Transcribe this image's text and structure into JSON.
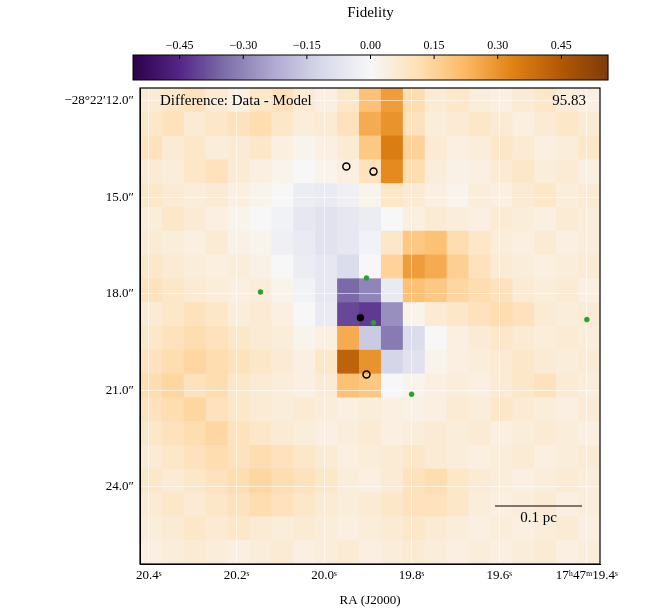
{
  "chart_data": {
    "type": "heatmap",
    "title": "Difference: Data - Model",
    "annotation": "95.83",
    "x_label": "RA (J2000)",
    "scale_bar": "0.1 pc",
    "grid": true,
    "xlim": [
      20.42,
      19.37
    ],
    "xticks": [
      {
        "value": 20.4,
        "label": "20.4ˢ"
      },
      {
        "value": 20.2,
        "label": "20.2ˢ"
      },
      {
        "value": 20.0,
        "label": "20.0ˢ"
      },
      {
        "value": 19.8,
        "label": "19.8ˢ"
      },
      {
        "value": 19.6,
        "label": "19.6ˢ"
      },
      {
        "value": 19.4,
        "label": "17ʰ47ᵐ19.4ˢ"
      }
    ],
    "ylim": [
      26.4,
      11.6
    ],
    "yticks": [
      {
        "value": 12,
        "label": "−28°22′12.0″"
      },
      {
        "value": 15,
        "label": "15.0″"
      },
      {
        "value": 18,
        "label": "18.0″"
      },
      {
        "value": 21,
        "label": "21.0″"
      },
      {
        "value": 24,
        "label": "24.0″"
      }
    ],
    "colorbar": {
      "title": "Fidelity",
      "range": [
        -0.56,
        0.56
      ],
      "ticks": [
        {
          "value": -0.45,
          "label": "−0.45"
        },
        {
          "value": -0.3,
          "label": "−0.30"
        },
        {
          "value": -0.15,
          "label": "−0.15"
        },
        {
          "value": 0,
          "label": "0.00"
        },
        {
          "value": 0.15,
          "label": "0.15"
        },
        {
          "value": 0.3,
          "label": "0.30"
        },
        {
          "value": 0.45,
          "label": "0.45"
        }
      ]
    },
    "heatmap": {
      "x": [
        20.395,
        20.345,
        20.295,
        20.245,
        20.195,
        20.145,
        20.095,
        20.045,
        19.995,
        19.945,
        19.895,
        19.845,
        19.795,
        19.745,
        19.695,
        19.645,
        19.595,
        19.545,
        19.495,
        19.445,
        19.395
      ],
      "y": [
        11.97,
        12.71,
        13.45,
        14.19,
        14.93,
        15.67,
        16.41,
        17.15,
        17.89,
        18.63,
        19.37,
        20.11,
        20.85,
        21.59,
        22.33,
        23.07,
        23.81,
        24.55,
        25.29,
        26.03
      ],
      "values": [
        [
          0.06,
          0.08,
          0.1,
          0.06,
          0.04,
          0.08,
          0.1,
          0.06,
          0.04,
          0.08,
          0.2,
          0.28,
          0.12,
          0.06,
          0.08,
          0.05,
          0.04,
          0.06,
          0.08,
          0.05,
          0.04
        ],
        [
          0.08,
          0.1,
          0.06,
          0.08,
          0.1,
          0.12,
          0.08,
          0.05,
          0.06,
          0.1,
          0.25,
          0.3,
          0.1,
          0.05,
          0.06,
          0.08,
          0.06,
          0.04,
          0.06,
          0.08,
          0.06
        ],
        [
          0.1,
          0.06,
          0.08,
          0.05,
          0.06,
          0.08,
          0.04,
          0.02,
          0.04,
          0.06,
          0.18,
          0.35,
          0.15,
          0.06,
          0.04,
          0.05,
          0.08,
          0.06,
          0.04,
          0.05,
          0.08
        ],
        [
          0.06,
          0.05,
          0.08,
          0.1,
          0.06,
          0.04,
          0.02,
          0,
          0.02,
          0.04,
          0.1,
          0.32,
          0.12,
          0.05,
          0.03,
          0.04,
          0.06,
          0.08,
          0.05,
          0.06,
          0.04
        ],
        [
          0.08,
          0.06,
          0.05,
          0.06,
          0.04,
          0.02,
          0,
          -0.04,
          -0.05,
          -0.03,
          0.02,
          0.08,
          0.06,
          0.04,
          0.02,
          0.05,
          0.04,
          0.06,
          0.08,
          0.05,
          0.06
        ],
        [
          0.05,
          0.08,
          0.06,
          0.04,
          0.02,
          0,
          -0.02,
          -0.06,
          -0.08,
          -0.06,
          -0.04,
          0,
          0.04,
          0.06,
          0.05,
          0.04,
          0.06,
          0.05,
          0.04,
          0.06,
          0.05
        ],
        [
          0.06,
          0.05,
          0.04,
          0.06,
          0.03,
          0.02,
          -0.03,
          -0.05,
          -0.08,
          -0.06,
          -0.02,
          0.08,
          0.18,
          0.2,
          0.12,
          0.08,
          0.05,
          0.04,
          0.06,
          0.04,
          0.05
        ],
        [
          0.08,
          0.06,
          0.05,
          0.04,
          0.05,
          0.03,
          0,
          -0.04,
          -0.06,
          -0.1,
          0,
          0.15,
          0.28,
          0.25,
          0.16,
          0.1,
          0.06,
          0.05,
          0.04,
          0.05,
          0.06
        ],
        [
          0.1,
          0.08,
          0.06,
          0.05,
          0.04,
          0.05,
          0.02,
          -0.02,
          -0.06,
          -0.35,
          -0.3,
          -0.05,
          0.2,
          0.18,
          0.14,
          0.12,
          0.1,
          0.06,
          0.05,
          0.06,
          0.04
        ],
        [
          0.06,
          0.08,
          0.1,
          0.08,
          0.05,
          0.06,
          0.04,
          0,
          -0.05,
          -0.4,
          -0.42,
          -0.28,
          0.02,
          0.06,
          0.08,
          0.1,
          0.12,
          0.1,
          0.06,
          0.05,
          0.06
        ],
        [
          0.08,
          0.1,
          0.12,
          0.1,
          0.08,
          0.06,
          0.05,
          0.02,
          0.04,
          0.25,
          -0.15,
          -0.32,
          -0.1,
          0,
          0.04,
          0.06,
          0.08,
          0.06,
          0.05,
          0.06,
          0.05
        ],
        [
          0.1,
          0.12,
          0.14,
          0.12,
          0.1,
          0.08,
          0.06,
          0.04,
          0.08,
          0.42,
          0.3,
          -0.12,
          -0.08,
          0.02,
          0.04,
          0.05,
          0.06,
          0.08,
          0.06,
          0.05,
          0.06
        ],
        [
          0.12,
          0.14,
          0.1,
          0.12,
          0.08,
          0.06,
          0.05,
          0.04,
          0.06,
          0.2,
          0.18,
          0,
          0.02,
          0.04,
          0.05,
          0.04,
          0.06,
          0.08,
          0.1,
          0.06,
          0.05
        ],
        [
          0.1,
          0.12,
          0.14,
          0.1,
          0.08,
          0.06,
          0.05,
          0.06,
          0.05,
          0.04,
          0.05,
          0.04,
          0.03,
          0.04,
          0.06,
          0.05,
          0.08,
          0.06,
          0.05,
          0.04,
          0.06
        ],
        [
          0.08,
          0.1,
          0.12,
          0.14,
          0.1,
          0.08,
          0.06,
          0.05,
          0.04,
          0.05,
          0.06,
          0.04,
          0.05,
          0.06,
          0.05,
          0.06,
          0.04,
          0.05,
          0.06,
          0.05,
          0.04
        ],
        [
          0.06,
          0.08,
          0.1,
          0.12,
          0.1,
          0.12,
          0.1,
          0.08,
          0.06,
          0.04,
          0.05,
          0.06,
          0.08,
          0.06,
          0.05,
          0.04,
          0.05,
          0.06,
          0.04,
          0.05,
          0.06
        ],
        [
          0.08,
          0.06,
          0.08,
          0.1,
          0.12,
          0.14,
          0.12,
          0.1,
          0.08,
          0.05,
          0.04,
          0.06,
          0.1,
          0.12,
          0.08,
          0.06,
          0.05,
          0.04,
          0.05,
          0.06,
          0.05
        ],
        [
          0.06,
          0.08,
          0.06,
          0.08,
          0.1,
          0.12,
          0.1,
          0.08,
          0.06,
          0.05,
          0.06,
          0.08,
          0.1,
          0.1,
          0.08,
          0.05,
          0.04,
          0.05,
          0.06,
          0.04,
          0.05
        ],
        [
          0.05,
          0.06,
          0.08,
          0.06,
          0.08,
          0.06,
          0.05,
          0.06,
          0.05,
          0.04,
          0.05,
          0.06,
          0.08,
          0.06,
          0.05,
          0.04,
          0.05,
          0.04,
          0.05,
          0.06,
          0.04
        ],
        [
          0.04,
          0.05,
          0.06,
          0.05,
          0.04,
          0.05,
          0.06,
          0.04,
          0.05,
          0.06,
          0.04,
          0.05,
          0.06,
          0.05,
          0.04,
          0.05,
          0.04,
          0.05,
          0.06,
          0.04,
          0.05
        ]
      ]
    },
    "series": [
      {
        "type": "scatter",
        "marker": "circle_open",
        "color": "#000000",
        "x": [
          19.949,
          19.887,
          19.903
        ],
        "y": [
          14.04,
          14.2,
          20.51
        ]
      },
      {
        "type": "scatter",
        "marker": "circle",
        "color": "#000000",
        "x": [
          19.917
        ],
        "y": [
          18.74
        ]
      },
      {
        "type": "scatter",
        "marker": "circle",
        "color": "#2ca02c",
        "x": [
          20.145,
          19.903,
          19.887,
          19.8,
          19.4
        ],
        "y": [
          17.94,
          17.51,
          18.9,
          21.12,
          18.8
        ]
      }
    ]
  }
}
